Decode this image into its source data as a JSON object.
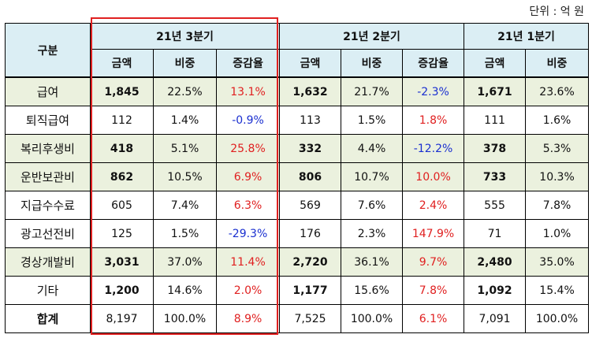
{
  "unit_label": "단위 : 억 원",
  "header": {
    "category": "구분",
    "periods": [
      "21년 3분기",
      "21년 2분기",
      "21년 1분기"
    ],
    "amount": "금액",
    "share": "비중",
    "change": "증감율"
  },
  "rows": [
    {
      "label": "급여",
      "q3": {
        "amount": "1,845",
        "share": "22.5%",
        "change": "13.1%"
      },
      "q2": {
        "amount": "1,632",
        "share": "21.7%",
        "change": "-2.3%"
      },
      "q1": {
        "amount": "1,671",
        "share": "23.6%"
      }
    },
    {
      "label": "퇴직급여",
      "q3": {
        "amount": "112",
        "share": "1.4%",
        "change": "-0.9%"
      },
      "q2": {
        "amount": "113",
        "share": "1.5%",
        "change": "1.8%"
      },
      "q1": {
        "amount": "111",
        "share": "1.6%"
      }
    },
    {
      "label": "복리후생비",
      "q3": {
        "amount": "418",
        "share": "5.1%",
        "change": "25.8%"
      },
      "q2": {
        "amount": "332",
        "share": "4.4%",
        "change": "-12.2%"
      },
      "q1": {
        "amount": "378",
        "share": "5.3%"
      }
    },
    {
      "label": "운반보관비",
      "q3": {
        "amount": "862",
        "share": "10.5%",
        "change": "6.9%"
      },
      "q2": {
        "amount": "806",
        "share": "10.7%",
        "change": "10.0%"
      },
      "q1": {
        "amount": "733",
        "share": "10.3%"
      }
    },
    {
      "label": "지급수수료",
      "q3": {
        "amount": "605",
        "share": "7.4%",
        "change": "6.3%"
      },
      "q2": {
        "amount": "569",
        "share": "7.6%",
        "change": "2.4%"
      },
      "q1": {
        "amount": "555",
        "share": "7.8%"
      }
    },
    {
      "label": "광고선전비",
      "q3": {
        "amount": "125",
        "share": "1.5%",
        "change": "-29.3%"
      },
      "q2": {
        "amount": "176",
        "share": "2.3%",
        "change": "147.9%"
      },
      "q1": {
        "amount": "71",
        "share": "1.0%"
      }
    },
    {
      "label": "경상개발비",
      "q3": {
        "amount": "3,031",
        "share": "37.0%",
        "change": "11.4%"
      },
      "q2": {
        "amount": "2,720",
        "share": "36.1%",
        "change": "9.7%"
      },
      "q1": {
        "amount": "2,480",
        "share": "35.0%"
      }
    },
    {
      "label": "기타",
      "q3": {
        "amount": "1,200",
        "share": "14.6%",
        "change": "2.0%"
      },
      "q2": {
        "amount": "1,177",
        "share": "15.6%",
        "change": "7.8%"
      },
      "q1": {
        "amount": "1,092",
        "share": "15.4%"
      }
    },
    {
      "label": "합계",
      "q3": {
        "amount": "8,197",
        "share": "100.0%",
        "change": "8.9%"
      },
      "q2": {
        "amount": "7,525",
        "share": "100.0%",
        "change": "6.1%"
      },
      "q1": {
        "amount": "7,091",
        "share": "100.0%"
      }
    }
  ],
  "colors": {
    "header_bg": "#dbeef4",
    "row_tint": "#ebf1de",
    "positive_change": "#e02020",
    "negative_change": "#1a2fd0",
    "highlight_border": "#e02020"
  }
}
